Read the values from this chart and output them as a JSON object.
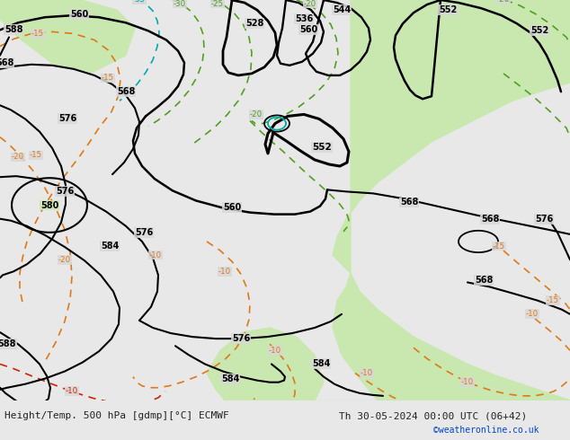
{
  "title_left": "Height/Temp. 500 hPa [gdmp][°C] ECMWF",
  "title_right": "Th 30-05-2024 00:00 UTC (06+42)",
  "credit": "©weatheronline.co.uk",
  "sea_color": "#d8d8d8",
  "land_color": "#c8e8b0",
  "bottom_bar_color": "#e8e8e8",
  "height_color": "#000000",
  "temp_orange_color": "#e07818",
  "temp_green_color": "#50a020",
  "temp_cyan_color": "#00aaaa",
  "temp_red_color": "#cc2200",
  "footnote_color": "#0044cc"
}
